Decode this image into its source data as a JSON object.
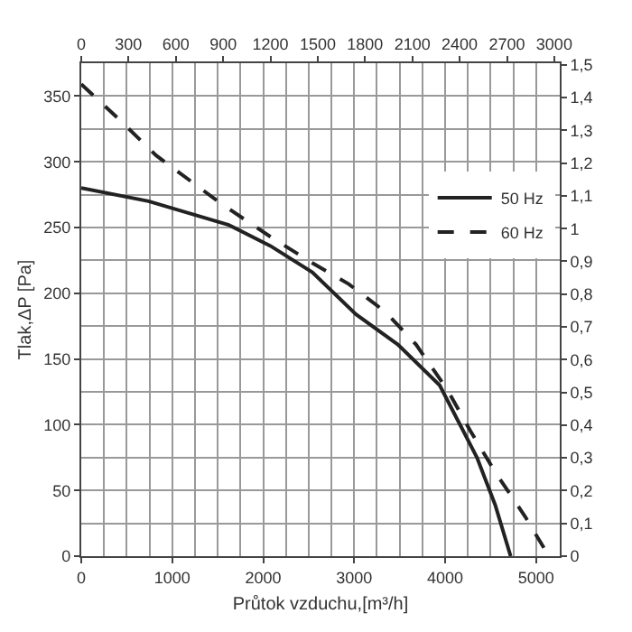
{
  "chart_data": {
    "type": "line",
    "xlabel": "Průtok vzduchu,[m³/h]",
    "ylabel": "Tlak,ΔP [Pa]",
    "xlim": [
      0,
      5260
    ],
    "ylim": [
      0,
      375
    ],
    "x2lim": [
      0,
      3035
    ],
    "y2lim": [
      0,
      1.505
    ],
    "xticks": [
      0,
      1000,
      2000,
      3000,
      4000,
      5000
    ],
    "yticks": [
      0,
      50,
      100,
      150,
      200,
      250,
      300,
      350
    ],
    "x2ticks": [
      0,
      300,
      600,
      900,
      1200,
      1500,
      1800,
      2100,
      2400,
      2700,
      3000
    ],
    "y2ticks": [
      0,
      {
        "value": 0.1,
        "label": "0,1"
      },
      {
        "value": 0.2,
        "label": "0,2"
      },
      {
        "value": 0.3,
        "label": "0,3"
      },
      {
        "value": 0.4,
        "label": "0,4"
      },
      {
        "value": 0.5,
        "label": "0,5"
      },
      {
        "value": 0.6,
        "label": "0,6"
      },
      {
        "value": 0.7,
        "label": "0,7"
      },
      {
        "value": 0.8,
        "label": "0,8"
      },
      {
        "value": 0.9,
        "label": "0,9"
      },
      1,
      {
        "value": 1.1,
        "label": "1,1"
      },
      {
        "value": 1.2,
        "label": "1,2"
      },
      {
        "value": 1.3,
        "label": "1,3"
      },
      {
        "value": 1.4,
        "label": "1,4"
      },
      {
        "value": 1.5,
        "label": "1,5"
      }
    ],
    "grid": true,
    "legend": "top right",
    "series": [
      {
        "name": "50 Hz",
        "color": "#222222",
        "line_style": "solid",
        "x": [
          0,
          740,
          1620,
          2080,
          2540,
          3020,
          3480,
          3940,
          4350,
          4550,
          4720
        ],
        "values": [
          280,
          270,
          252,
          236,
          216,
          184,
          161,
          130,
          75,
          39,
          0
        ]
      },
      {
        "name": "60 Hz",
        "color": "#222222",
        "line_style": "dashed",
        "x": [
          0,
          420,
          820,
          1540,
          2080,
          2540,
          2940,
          3340,
          3680,
          4020,
          4280,
          4550,
          4880,
          5140
        ],
        "values": [
          359,
          332,
          305,
          268,
          243,
          223,
          207,
          186,
          161,
          127,
          95,
          64,
          30,
          0
        ]
      }
    ]
  }
}
